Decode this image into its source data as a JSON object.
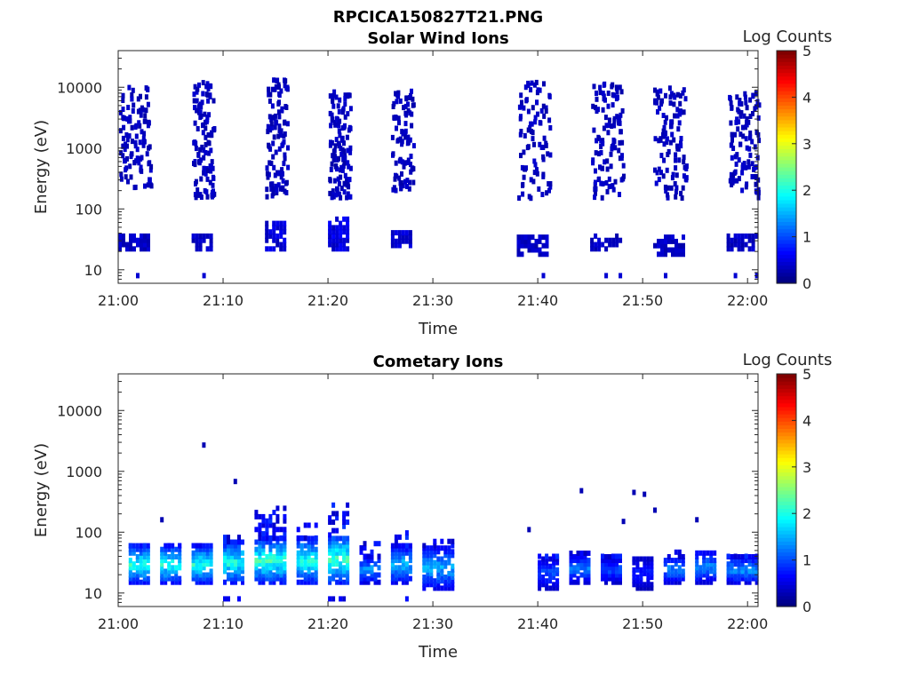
{
  "figure_title": "RPCICA150827T21.PNG",
  "chart_data": [
    {
      "type": "heatmap",
      "title": "Solar Wind Ions",
      "xlabel": "Time",
      "ylabel": "Energy (eV)",
      "yscale": "log",
      "ylim": [
        6,
        40000
      ],
      "xlim": [
        "21:00",
        "22:01"
      ],
      "x_ticks": [
        "21:00",
        "21:10",
        "21:20",
        "21:30",
        "21:40",
        "21:50",
        "22:00"
      ],
      "y_ticks": [
        "10",
        "100",
        "1000",
        "10000"
      ],
      "colorbar": {
        "label": "Log Counts",
        "min": 0,
        "max": 5,
        "ticks": [
          "0",
          "1",
          "2",
          "3",
          "4",
          "5"
        ],
        "colormap": "jet"
      },
      "bursts": [
        {
          "start": "21:00",
          "end": "21:03",
          "emin": 200,
          "emax": 10000,
          "scatter": 35,
          "low_band": [
            22,
            40
          ],
          "low_level": 0.35,
          "spike_energy": 8
        },
        {
          "start": "21:07",
          "end": "21:09",
          "emin": 150,
          "emax": 12000,
          "scatter": 35,
          "low_band": [
            22,
            40
          ],
          "low_level": 0.35,
          "spike_energy": 8
        },
        {
          "start": "21:14",
          "end": "21:16",
          "emin": 150,
          "emax": 15000,
          "scatter": 35,
          "low_band": [
            22,
            60
          ],
          "low_level": 0.45,
          "spike_energy": 8
        },
        {
          "start": "21:20",
          "end": "21:22",
          "emin": 150,
          "emax": 9000,
          "scatter": 40,
          "low_band": [
            22,
            70
          ],
          "low_level": 0.5,
          "spike_energy": 8
        },
        {
          "start": "21:26",
          "end": "21:28",
          "emin": 200,
          "emax": 9000,
          "scatter": 30,
          "low_band": [
            25,
            45
          ],
          "low_level": 0.4,
          "spike_energy": 8
        },
        {
          "start": "21:38",
          "end": "21:41",
          "emin": 150,
          "emax": 12000,
          "scatter": 30,
          "low_band": [
            18,
            35
          ],
          "low_level": 0.35,
          "spike_energy": 8
        },
        {
          "start": "21:45",
          "end": "21:48",
          "emin": 150,
          "emax": 12000,
          "scatter": 35,
          "low_band": [
            22,
            40
          ],
          "low_level": 0.35,
          "spike_energy": 8
        },
        {
          "start": "21:51",
          "end": "21:54",
          "emin": 150,
          "emax": 10000,
          "scatter": 35,
          "low_band": [
            18,
            40
          ],
          "low_level": 0.35,
          "spike_energy": 8
        },
        {
          "start": "21:58",
          "end": "22:01",
          "emin": 150,
          "emax": 8000,
          "scatter": 35,
          "low_band": [
            22,
            40
          ],
          "low_level": 0.35,
          "spike_energy": 8
        }
      ]
    },
    {
      "type": "heatmap",
      "title": "Cometary Ions",
      "xlabel": "Time",
      "ylabel": "Energy (eV)",
      "yscale": "log",
      "ylim": [
        6,
        40000
      ],
      "xlim": [
        "21:00",
        "22:01"
      ],
      "x_ticks": [
        "21:00",
        "21:10",
        "21:20",
        "21:30",
        "21:40",
        "21:50",
        "22:00"
      ],
      "y_ticks": [
        "10",
        "100",
        "1000",
        "10000"
      ],
      "colorbar": {
        "label": "Log Counts",
        "min": 0,
        "max": 5,
        "ticks": [
          "0",
          "1",
          "2",
          "3",
          "4",
          "5"
        ],
        "colormap": "jet"
      },
      "bursts": [
        {
          "start": "21:01",
          "end": "21:03",
          "band": [
            15,
            60
          ],
          "peak": 2.0,
          "top": 60,
          "spike_energy": 0
        },
        {
          "start": "21:04",
          "end": "21:06",
          "band": [
            15,
            60
          ],
          "peak": 2.0,
          "top": 70,
          "spike_energy": 0
        },
        {
          "start": "21:07",
          "end": "21:09",
          "band": [
            15,
            60
          ],
          "peak": 2.0,
          "top": 70,
          "spike_energy": 0
        },
        {
          "start": "21:10",
          "end": "21:12",
          "band": [
            15,
            70
          ],
          "peak": 2.0,
          "top": 90,
          "spike_energy": 8
        },
        {
          "start": "21:13",
          "end": "21:16",
          "band": [
            15,
            80
          ],
          "peak": 2.1,
          "top": 250,
          "spike_energy": 0
        },
        {
          "start": "21:17",
          "end": "21:19",
          "band": [
            15,
            80
          ],
          "peak": 2.0,
          "top": 140,
          "spike_energy": 8
        },
        {
          "start": "21:20",
          "end": "21:22",
          "band": [
            15,
            90
          ],
          "peak": 2.2,
          "top": 300,
          "spike_energy": 8
        },
        {
          "start": "21:23",
          "end": "21:25",
          "band": [
            15,
            40
          ],
          "peak": 1.4,
          "top": 70,
          "spike_energy": 6
        },
        {
          "start": "21:26",
          "end": "21:28",
          "band": [
            15,
            60
          ],
          "peak": 1.6,
          "top": 100,
          "spike_energy": 8
        },
        {
          "start": "21:29",
          "end": "21:32",
          "band": [
            12,
            60
          ],
          "peak": 1.5,
          "top": 80,
          "spike_energy": 0
        },
        {
          "start": "21:40",
          "end": "21:42",
          "band": [
            12,
            40
          ],
          "peak": 1.0,
          "top": 45,
          "spike_energy": 0
        },
        {
          "start": "21:43",
          "end": "21:45",
          "band": [
            15,
            45
          ],
          "peak": 1.2,
          "top": 50,
          "spike_energy": 0
        },
        {
          "start": "21:46",
          "end": "21:48",
          "band": [
            15,
            40
          ],
          "peak": 1.0,
          "top": 45,
          "spike_energy": 0
        },
        {
          "start": "21:49",
          "end": "21:51",
          "band": [
            12,
            40
          ],
          "peak": 0.8,
          "top": 45,
          "spike_energy": 0
        },
        {
          "start": "21:52",
          "end": "21:54",
          "band": [
            15,
            40
          ],
          "peak": 1.3,
          "top": 50,
          "spike_energy": 0
        },
        {
          "start": "21:55",
          "end": "21:57",
          "band": [
            15,
            50
          ],
          "peak": 1.3,
          "top": 55,
          "spike_energy": 0
        },
        {
          "start": "21:58",
          "end": "22:01",
          "band": [
            15,
            40
          ],
          "peak": 1.4,
          "top": 45,
          "spike_energy": 0
        }
      ],
      "isolated_points": [
        {
          "time": "21:04",
          "energy": 160
        },
        {
          "time": "21:08",
          "energy": 2700
        },
        {
          "time": "21:11",
          "energy": 680
        },
        {
          "time": "21:39",
          "energy": 110
        },
        {
          "time": "21:44",
          "energy": 480
        },
        {
          "time": "21:49",
          "energy": 450
        },
        {
          "time": "21:50",
          "energy": 420
        },
        {
          "time": "21:51",
          "energy": 230
        },
        {
          "time": "21:48",
          "energy": 150
        },
        {
          "time": "21:55",
          "energy": 160
        }
      ]
    }
  ]
}
